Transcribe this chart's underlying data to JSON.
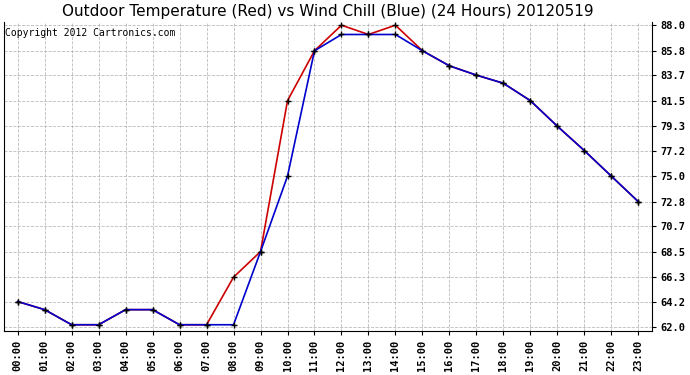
{
  "title": "Outdoor Temperature (Red) vs Wind Chill (Blue) (24 Hours) 20120519",
  "copyright": "Copyright 2012 Cartronics.com",
  "x_labels": [
    "00:00",
    "01:00",
    "02:00",
    "03:00",
    "04:00",
    "05:00",
    "06:00",
    "07:00",
    "08:00",
    "09:00",
    "10:00",
    "11:00",
    "12:00",
    "13:00",
    "14:00",
    "15:00",
    "16:00",
    "17:00",
    "18:00",
    "19:00",
    "20:00",
    "21:00",
    "22:00",
    "23:00"
  ],
  "temp_red": [
    64.2,
    63.5,
    62.2,
    62.2,
    63.5,
    63.5,
    62.2,
    62.2,
    66.3,
    68.5,
    81.5,
    85.8,
    88.0,
    87.2,
    88.0,
    85.8,
    84.5,
    83.7,
    83.0,
    81.5,
    79.3,
    77.2,
    75.0,
    72.8
  ],
  "wind_chill_blue": [
    64.2,
    63.5,
    62.2,
    62.2,
    63.5,
    63.5,
    62.2,
    62.2,
    62.2,
    68.5,
    75.0,
    85.8,
    87.2,
    87.2,
    87.2,
    85.8,
    84.5,
    83.7,
    83.0,
    81.5,
    79.3,
    77.2,
    75.0,
    72.8
  ],
  "y_min": 62.0,
  "y_max": 88.0,
  "y_ticks": [
    62.0,
    64.2,
    66.3,
    68.5,
    70.7,
    72.8,
    75.0,
    77.2,
    79.3,
    81.5,
    83.7,
    85.8,
    88.0
  ],
  "background_color": "#ffffff",
  "grid_color": "#aaaaaa",
  "red_color": "#cc0000",
  "blue_color": "#0000cc",
  "marker_color": "#000000",
  "title_fontsize": 11,
  "copyright_fontsize": 7,
  "tick_fontsize": 7.5
}
